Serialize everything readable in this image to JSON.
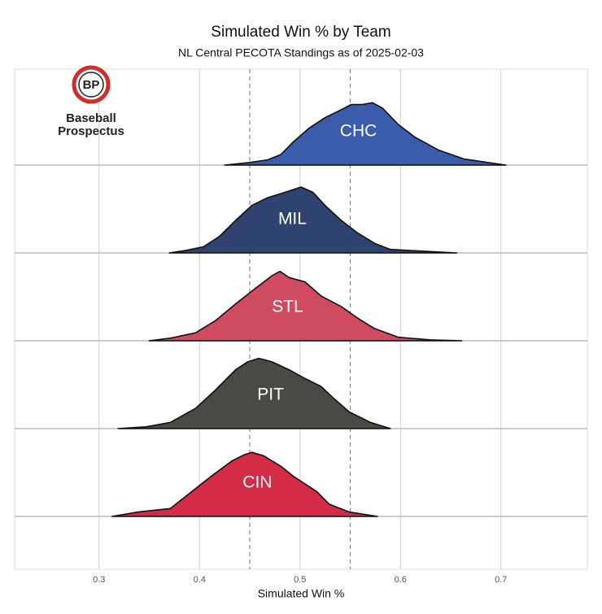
{
  "chart_data": {
    "type": "ridgeline",
    "title": "Simulated Win % by Team",
    "subtitle": "NL Central PECOTA Standings as of 2025-02-03",
    "x_label": "Simulated Win %",
    "xlim": [
      0.216,
      0.786
    ],
    "xticks": [
      0.3,
      0.4,
      0.5,
      0.6,
      0.7
    ],
    "vlines": [
      0.45,
      0.55
    ],
    "grid": true,
    "series": [
      {
        "name": "CHC",
        "color": "#3b5bab",
        "x": [
          0.425,
          0.45,
          0.468,
          0.481,
          0.493,
          0.509,
          0.525,
          0.541,
          0.551,
          0.562,
          0.572,
          0.582,
          0.598,
          0.614,
          0.638,
          0.663,
          0.687,
          0.705
        ],
        "values": [
          0,
          0.03,
          0.06,
          0.12,
          0.26,
          0.42,
          0.54,
          0.63,
          0.69,
          0.69,
          0.71,
          0.65,
          0.46,
          0.32,
          0.17,
          0.07,
          0.03,
          0
        ]
      },
      {
        "name": "MIL",
        "color": "#2f4371",
        "x": [
          0.37,
          0.387,
          0.404,
          0.42,
          0.436,
          0.452,
          0.468,
          0.485,
          0.501,
          0.513,
          0.525,
          0.541,
          0.557,
          0.574,
          0.59,
          0.622,
          0.656
        ],
        "values": [
          0,
          0.03,
          0.07,
          0.19,
          0.37,
          0.54,
          0.63,
          0.69,
          0.75,
          0.69,
          0.54,
          0.37,
          0.23,
          0.11,
          0.04,
          0.02,
          0
        ]
      },
      {
        "name": "STL",
        "color": "#d14b60",
        "x": [
          0.35,
          0.371,
          0.396,
          0.416,
          0.436,
          0.456,
          0.472,
          0.48,
          0.489,
          0.505,
          0.521,
          0.541,
          0.557,
          0.574,
          0.598,
          0.63,
          0.661
        ],
        "values": [
          0,
          0.03,
          0.09,
          0.23,
          0.42,
          0.6,
          0.74,
          0.79,
          0.72,
          0.67,
          0.51,
          0.39,
          0.26,
          0.14,
          0.04,
          0.01,
          0
        ]
      },
      {
        "name": "PIT",
        "color": "#4a4a45",
        "x": [
          0.319,
          0.347,
          0.371,
          0.396,
          0.416,
          0.436,
          0.448,
          0.459,
          0.472,
          0.489,
          0.505,
          0.521,
          0.533,
          0.549,
          0.57,
          0.59
        ],
        "values": [
          0,
          0.02,
          0.07,
          0.23,
          0.44,
          0.67,
          0.76,
          0.8,
          0.76,
          0.67,
          0.57,
          0.48,
          0.35,
          0.19,
          0.07,
          0
        ]
      },
      {
        "name": "CIN",
        "color": "#d42b46",
        "x": [
          0.313,
          0.339,
          0.371,
          0.392,
          0.412,
          0.432,
          0.444,
          0.452,
          0.464,
          0.481,
          0.493,
          0.505,
          0.517,
          0.529,
          0.549,
          0.577
        ],
        "values": [
          0,
          0.05,
          0.09,
          0.28,
          0.46,
          0.63,
          0.7,
          0.73,
          0.69,
          0.57,
          0.46,
          0.37,
          0.28,
          0.14,
          0.05,
          0
        ]
      }
    ]
  },
  "logo": {
    "mark": "BP",
    "line1": "Baseball",
    "line2": "Prospectus"
  }
}
